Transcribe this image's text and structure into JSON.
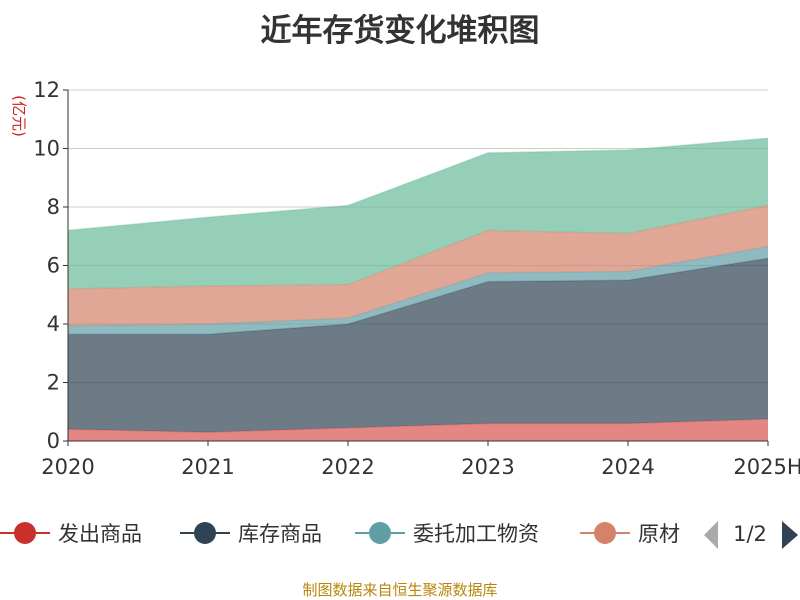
{
  "chart_data": {
    "type": "area",
    "title": "近年存货变化堆积图",
    "ylabel": "(亿元)",
    "xlabel": "",
    "categories": [
      "2020",
      "2021",
      "2022",
      "2023",
      "2024",
      "2025H"
    ],
    "ylim": [
      0,
      12
    ],
    "yticks": [
      0,
      2,
      4,
      6,
      8,
      10,
      12
    ],
    "stacked": true,
    "grid": true,
    "series": [
      {
        "name": "发出商品",
        "color": "#d9534f",
        "values": [
          0.4,
          0.3,
          0.45,
          0.6,
          0.6,
          0.75
        ]
      },
      {
        "name": "库存商品",
        "color": "#2f4354",
        "values": [
          3.25,
          3.35,
          3.55,
          4.85,
          4.9,
          5.5
        ]
      },
      {
        "name": "委托加工物资",
        "color": "#5f9ea5",
        "values": [
          0.3,
          0.35,
          0.2,
          0.3,
          0.3,
          0.4
        ]
      },
      {
        "name": "原材料",
        "color": "#d4826a",
        "values": [
          1.25,
          1.3,
          1.15,
          1.45,
          1.3,
          1.4
        ]
      },
      {
        "name": "",
        "color": "#6aba9a",
        "values": [
          2.0,
          2.35,
          2.7,
          2.65,
          2.85,
          2.3
        ]
      }
    ],
    "legend": {
      "position": "bottom",
      "visible_labels": [
        "发出商品",
        "库存商品",
        "委托加工物资",
        "原材"
      ],
      "page": "1/2"
    }
  },
  "source": "制图数据来自恒生聚源数据库"
}
